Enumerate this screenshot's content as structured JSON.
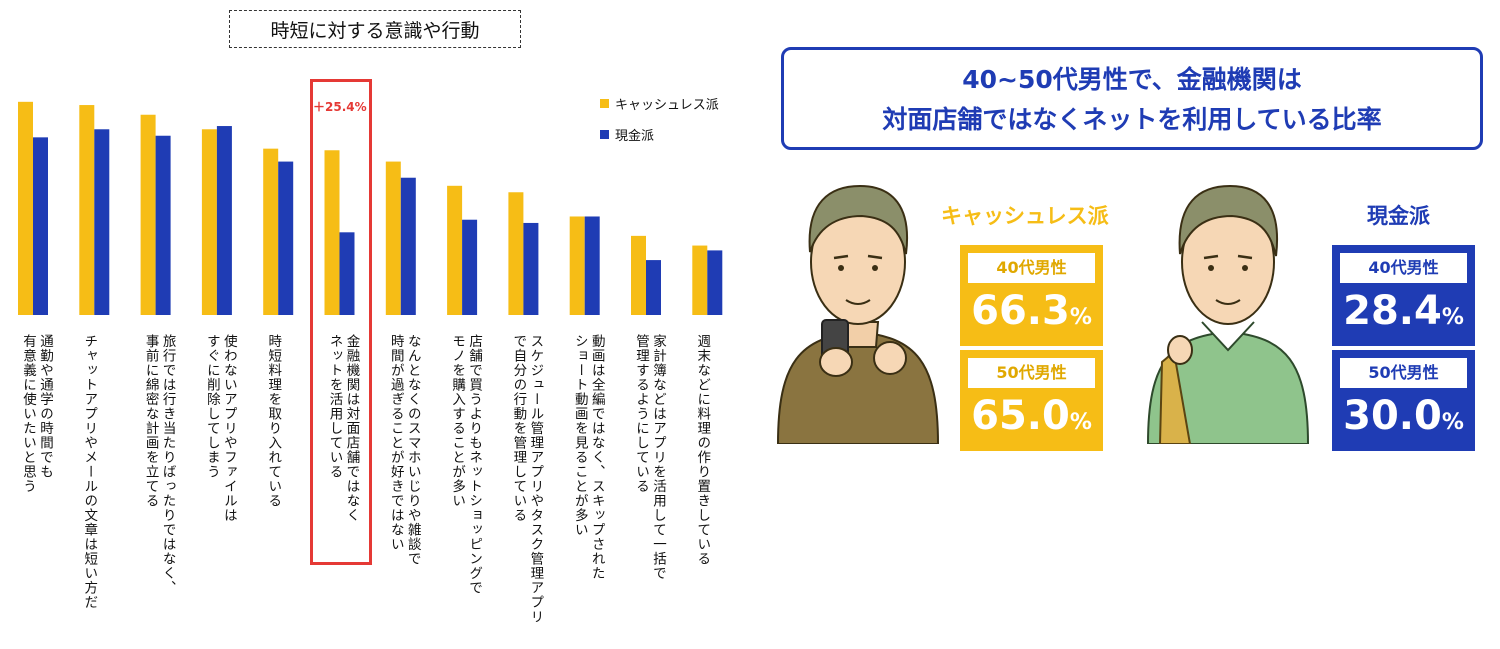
{
  "left_panel": {
    "title": "時短に対する意識や行動",
    "highlight": "＋25.4%",
    "legend": [
      {
        "label": "キャッシュレス派",
        "color": "#f6bd16"
      },
      {
        "label": "現金派",
        "color": "#1f3cb4"
      }
    ]
  },
  "chart_data": {
    "type": "bar",
    "categories": [
      "通勤や通学の時間でも\n有意義に使いたいと思う",
      "チャットアプリやメールの文章は短い方だ",
      "旅行では行き当たりばったりではなく、\n事前に綿密な計画を立てる",
      "使わないアプリやファイルは\nすぐに削除してしまう",
      "時短料理を取り入れている",
      "金融機関は対面店舗ではなく\nネットを活用している",
      "なんとなくのスマホいじりや雑談で\n時間が過ぎることが好きではない",
      "店舗で買うよりもネットショッピングで\nモノを購入することが多い",
      "スケジュール管理アプリやタスク管理アプリ\nで自分の行動を管理している",
      "動画は全編ではなく、スキップされた\nショート動画を見ることが多い",
      "家計簿などはアプリを活用して一括で\n管理するようにしている",
      "週末などに料理の作り置きしている"
    ],
    "series": [
      {
        "name": "キャッシュレス派",
        "values": [
          66.0,
          65.0,
          62.0,
          57.5,
          51.5,
          51.0,
          47.5,
          40.0,
          38.0,
          30.5,
          24.5,
          21.5
        ]
      },
      {
        "name": "現金派",
        "values": [
          55.0,
          57.5,
          55.5,
          58.5,
          47.5,
          25.6,
          42.5,
          29.5,
          28.5,
          30.5,
          17.0,
          20.0
        ]
      }
    ],
    "ylim": [
      0,
      70
    ],
    "grid": false
  },
  "right_panel": {
    "title_line1": "40~50代男性で、金融機関は",
    "title_line2": "対面店舗ではなくネットを利用している比率",
    "groups": [
      {
        "name": "キャッシュレス派",
        "color": "#f6bd16",
        "items": [
          {
            "label": "40代男性",
            "value": "66.3",
            "unit": "%"
          },
          {
            "label": "50代男性",
            "value": "65.0",
            "unit": "%"
          }
        ]
      },
      {
        "name": "現金派",
        "color": "#1f3cb4",
        "items": [
          {
            "label": "40代男性",
            "value": "28.4",
            "unit": "%"
          },
          {
            "label": "50代男性",
            "value": "30.0",
            "unit": "%"
          }
        ]
      }
    ]
  }
}
